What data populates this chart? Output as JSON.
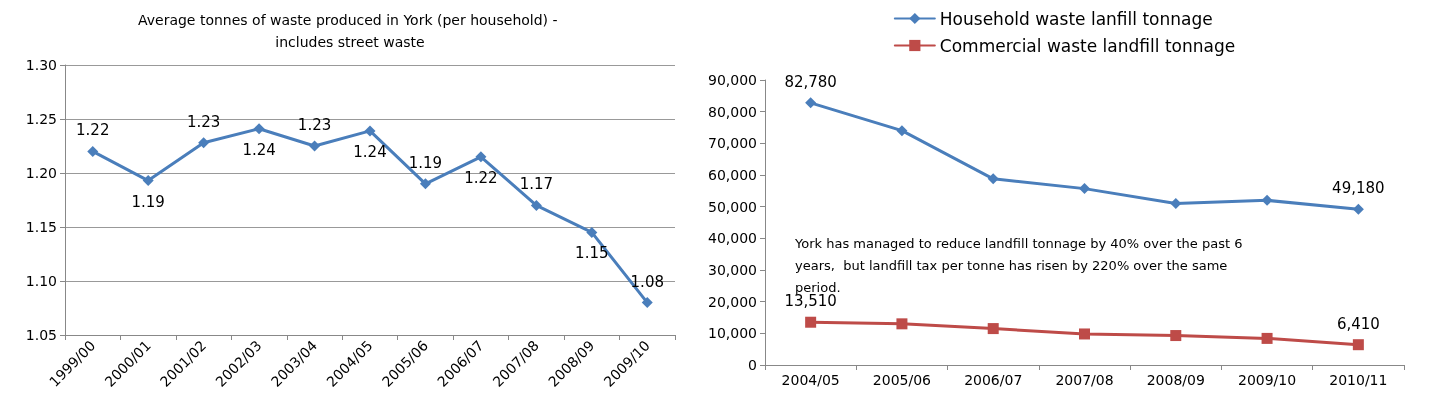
{
  "chart_data": [
    {
      "type": "line",
      "title": "Average tonnes of waste produced in York (per household) - includes street waste",
      "categories": [
        "1999/00",
        "2000/01",
        "2001/02",
        "2002/03",
        "2003/04",
        "2004/05",
        "2005/06",
        "2006/07",
        "2007/08",
        "2008/09",
        "2009/10"
      ],
      "series": [
        {
          "color": "#4a7ebb",
          "values": [
            1.22,
            1.193,
            1.228,
            1.241,
            1.225,
            1.239,
            1.19,
            1.215,
            1.17,
            1.145,
            1.08
          ],
          "value_labels": [
            "1.22",
            "1.19",
            "1.23",
            "1.24",
            "1.23",
            "1.24",
            "1.19",
            "1.22",
            "1.17",
            "1.15",
            "1.08"
          ]
        }
      ],
      "ylim": [
        1.05,
        1.3
      ],
      "yticks": [
        {
          "value": 1.05,
          "label": "1.05"
        },
        {
          "value": 1.1,
          "label": "1.10"
        },
        {
          "value": 1.15,
          "label": "1.15"
        },
        {
          "value": 1.2,
          "label": "1.20"
        },
        {
          "value": 1.25,
          "label": "1.25"
        },
        {
          "value": 1.3,
          "label": "1.30"
        }
      ],
      "grid": "y",
      "legend": false,
      "marker": "diamond",
      "line_style": "solid"
    },
    {
      "type": "line",
      "categories": [
        "2004/05",
        "2005/06",
        "2006/07",
        "2007/08",
        "2008/09",
        "2009/10",
        "2010/11"
      ],
      "series": [
        {
          "name": "Household waste lanfill tonnage",
          "color": "#4a7ebb",
          "marker": "diamond",
          "values": [
            82780,
            74000,
            58800,
            55700,
            51000,
            52000,
            49180
          ],
          "value_labels": [
            "82,780",
            null,
            null,
            null,
            null,
            null,
            "49,180"
          ]
        },
        {
          "name": "Commercial waste landfill tonnage",
          "color": "#be4b48",
          "marker": "square",
          "values": [
            13510,
            13000,
            11500,
            9800,
            9300,
            8400,
            6410
          ],
          "value_labels": [
            "13,510",
            null,
            null,
            null,
            null,
            null,
            "6,410"
          ]
        }
      ],
      "ylim": [
        0,
        90000
      ],
      "yticks": [
        0,
        {
          "value": 10000,
          "label": "10,000"
        },
        {
          "value": 20000,
          "label": "20,000"
        },
        {
          "value": 30000,
          "label": "30,000"
        },
        {
          "value": 40000,
          "label": "40,000"
        },
        {
          "value": 50000,
          "label": "50,000"
        },
        {
          "value": 60000,
          "label": "60,000"
        },
        {
          "value": 70000,
          "label": "70,000"
        },
        {
          "value": 80000,
          "label": "80,000"
        },
        {
          "value": 90000,
          "label": "90,000"
        }
      ],
      "grid": false,
      "legend": "top",
      "line_style": "solid",
      "annotations": [
        "York has managed to reduce landfill tonnage by 40% over the past 6 years,  but landfill tax per tonne has risen by 220% over the same period."
      ]
    }
  ]
}
